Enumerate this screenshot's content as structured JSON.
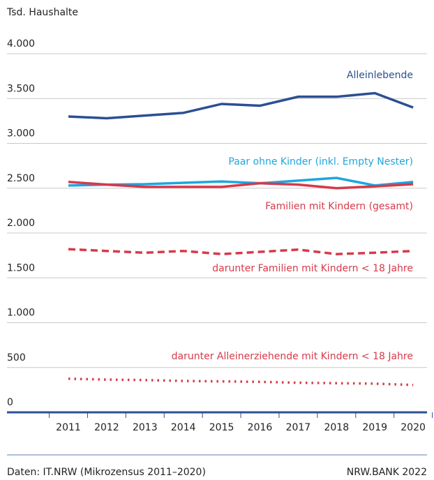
{
  "chart_data": {
    "type": "line",
    "y_label": "Tsd. Haushalte",
    "categories": [
      "2011",
      "2012",
      "2013",
      "2014",
      "2015",
      "2016",
      "2017",
      "2018",
      "2019",
      "2020"
    ],
    "ylim": [
      0,
      4000
    ],
    "yticks": [
      0,
      500,
      {
        "value": 1000,
        "label": "1.000"
      },
      {
        "value": 1500,
        "label": "1.500"
      },
      {
        "value": 2000,
        "label": "2.000"
      },
      {
        "value": 2500,
        "label": "2.500"
      },
      {
        "value": 3000,
        "label": "3.000"
      },
      {
        "value": 3500,
        "label": "3.500"
      },
      {
        "value": 4000,
        "label": "4.000"
      }
    ],
    "grid": true,
    "series": [
      {
        "name": "Alleinlebende",
        "color": "#2b4f93",
        "style": "solid",
        "values": [
          3300,
          3280,
          3310,
          3340,
          3440,
          3420,
          3520,
          3520,
          3560,
          3400
        ]
      },
      {
        "name": "Paar ohne Kinder (inkl. Empty Nester)",
        "color": "#1ea6e0",
        "style": "solid",
        "values": [
          2530,
          2540,
          2545,
          2560,
          2575,
          2555,
          2585,
          2615,
          2530,
          2570
        ]
      },
      {
        "name": "Familien mit Kindern (gesamt)",
        "color": "#d63a4a",
        "style": "solid",
        "values": [
          2570,
          2540,
          2515,
          2515,
          2515,
          2555,
          2540,
          2500,
          2520,
          2545
        ]
      },
      {
        "name": "darunter Familien mit Kindern < 18 Jahre",
        "color": "#d63a4a",
        "style": "dashed",
        "values": [
          1820,
          1800,
          1780,
          1800,
          1765,
          1790,
          1815,
          1765,
          1780,
          1800
        ]
      },
      {
        "name": "darunter Alleinerziehende mit Kindern < 18 Jahre",
        "color": "#d63a4a",
        "style": "dotted",
        "values": [
          375,
          365,
          360,
          350,
          345,
          340,
          330,
          325,
          320,
          305
        ]
      }
    ],
    "source": "Daten: IT.NRW (Mikrozensus 2011–2020)",
    "publisher": "NRW.BANK 2022"
  }
}
